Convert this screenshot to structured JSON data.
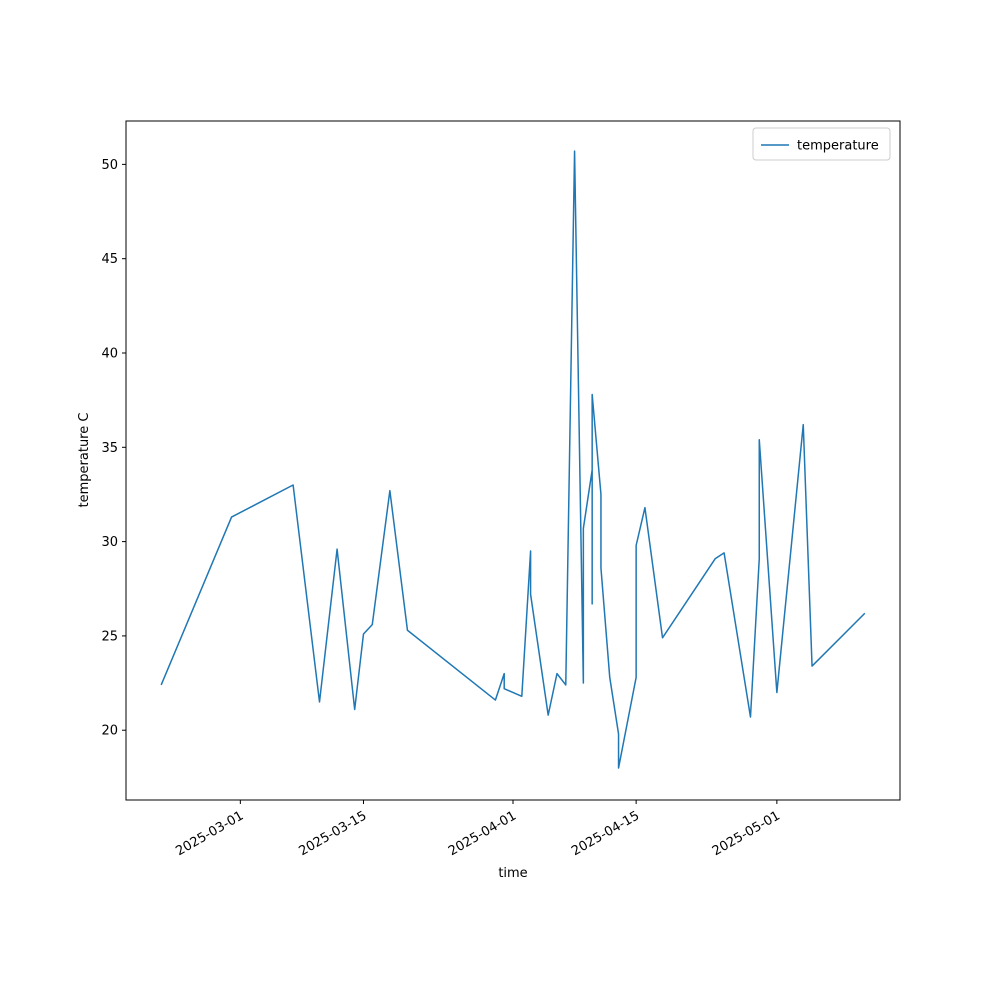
{
  "chart_data": {
    "type": "line",
    "x_label": "time",
    "y_label": "temperature C",
    "x": [
      "2025-02-20",
      "2025-02-28",
      "2025-03-07",
      "2025-03-10",
      "2025-03-12",
      "2025-03-14",
      "2025-03-15",
      "2025-03-16",
      "2025-03-18",
      "2025-03-20",
      "2025-03-30",
      "2025-03-31",
      "2025-03-31",
      "2025-04-02",
      "2025-04-03",
      "2025-04-03",
      "2025-04-05",
      "2025-04-06",
      "2025-04-07",
      "2025-04-08",
      "2025-04-09",
      "2025-04-09",
      "2025-04-10",
      "2025-04-10",
      "2025-04-10",
      "2025-04-10",
      "2025-04-11",
      "2025-04-11",
      "2025-04-12",
      "2025-04-13",
      "2025-04-13",
      "2025-04-15",
      "2025-04-15",
      "2025-04-16",
      "2025-04-18",
      "2025-04-24",
      "2025-04-25",
      "2025-04-28",
      "2025-04-29",
      "2025-04-29",
      "2025-05-01",
      "2025-05-04",
      "2025-05-05",
      "2025-05-11"
    ],
    "series": [
      {
        "name": "temperature",
        "color": "#1f77b4",
        "values": [
          22.4,
          31.3,
          33.0,
          21.5,
          29.6,
          21.1,
          25.1,
          25.6,
          32.7,
          25.3,
          21.6,
          23.0,
          22.2,
          21.8,
          29.5,
          27.2,
          20.8,
          23.0,
          22.4,
          50.7,
          22.5,
          30.7,
          33.8,
          30.1,
          26.7,
          37.8,
          32.5,
          28.6,
          22.8,
          19.8,
          18.0,
          22.8,
          29.8,
          31.8,
          24.9,
          29.1,
          29.4,
          20.7,
          29.1,
          35.4,
          22.0,
          36.2,
          23.4,
          26.2
        ]
      }
    ],
    "xlim": [
      "2025-02-16",
      "2025-05-15"
    ],
    "xticks": [
      "2025-03-01",
      "2025-03-15",
      "2025-04-01",
      "2025-04-15",
      "2025-05-01"
    ],
    "ylim": [
      16.3,
      52.3
    ],
    "yticks": [
      20,
      25,
      30,
      35,
      40,
      45,
      50
    ],
    "legend": "upper right"
  }
}
